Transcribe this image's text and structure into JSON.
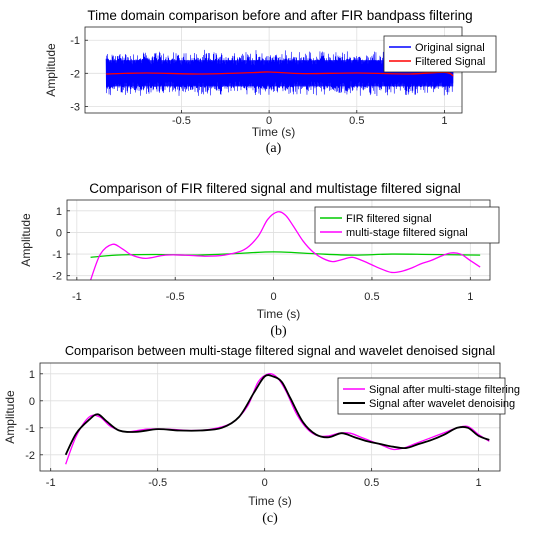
{
  "chart_data": [
    {
      "type": "line",
      "panel": "a",
      "title": "Time domain comparison before and after FIR bandpass filtering",
      "xlabel": "Time (s)",
      "ylabel": "Amplitude",
      "xlim": [
        -1.05,
        1.1
      ],
      "ylim": [
        -3.2,
        -0.6
      ],
      "xticks": [
        -0.5,
        0,
        0.5,
        1
      ],
      "xtick_labels": [
        "-0.5",
        "0",
        "0.5",
        "1"
      ],
      "yticks": [
        -3,
        -2,
        -1
      ],
      "ytick_labels": [
        "-3",
        "-2",
        "-1"
      ],
      "grid": true,
      "legend": "top-right",
      "series": [
        {
          "name": "Original signal",
          "color": "#0000ff",
          "style": "noise-band",
          "x_range": [
            -0.93,
            1.05
          ],
          "center": -2.0,
          "half_width": 0.72
        },
        {
          "name": "Filtered Signal",
          "color": "#ff0000",
          "x": [
            -0.93,
            -0.7,
            -0.4,
            -0.1,
            0.0,
            0.2,
            0.5,
            0.8,
            1.0,
            1.05
          ],
          "y": [
            -2.02,
            -1.99,
            -2.02,
            -1.98,
            -1.96,
            -2.01,
            -1.99,
            -2.02,
            -1.97,
            -2.08
          ]
        }
      ]
    },
    {
      "type": "line",
      "panel": "b",
      "title": "Comparison of FIR filtered signal and multistage filtered signal",
      "xlabel": "Time (s)",
      "ylabel": "Amplitude",
      "xlim": [
        -1.05,
        1.1
      ],
      "ylim": [
        -2.2,
        1.5
      ],
      "xticks": [
        -1,
        -0.5,
        0,
        0.5,
        1
      ],
      "xtick_labels": [
        "-1",
        "-0.5",
        "0",
        "0.5",
        "1"
      ],
      "yticks": [
        -2,
        -1,
        0,
        1
      ],
      "ytick_labels": [
        "-2",
        "-1",
        "0",
        "1"
      ],
      "grid": true,
      "legend": "top-right",
      "series": [
        {
          "name": "FIR filtered signal",
          "color": "#00cc00",
          "x": [
            -0.93,
            -0.8,
            -0.6,
            -0.4,
            -0.2,
            0.0,
            0.2,
            0.4,
            0.6,
            0.8,
            1.05
          ],
          "y": [
            -1.15,
            -1.05,
            -1.02,
            -1.05,
            -0.98,
            -0.9,
            -0.98,
            -1.05,
            -1.0,
            -1.02,
            -1.05
          ]
        },
        {
          "name": "multi-stage filtered signal",
          "color": "#ff00ff",
          "x": [
            -0.93,
            -0.88,
            -0.82,
            -0.77,
            -0.72,
            -0.65,
            -0.55,
            -0.45,
            -0.35,
            -0.25,
            -0.15,
            -0.08,
            -0.03,
            0.02,
            0.06,
            0.1,
            0.15,
            0.2,
            0.25,
            0.3,
            0.35,
            0.4,
            0.45,
            0.5,
            0.55,
            0.6,
            0.65,
            0.7,
            0.75,
            0.8,
            0.85,
            0.9,
            0.95,
            1.0,
            1.05
          ],
          "y": [
            -2.2,
            -1.0,
            -0.55,
            -0.75,
            -1.05,
            -1.2,
            -1.05,
            -1.05,
            -1.1,
            -1.05,
            -0.8,
            -0.2,
            0.6,
            0.95,
            0.8,
            0.3,
            -0.4,
            -0.9,
            -1.2,
            -1.35,
            -1.25,
            -1.15,
            -1.3,
            -1.5,
            -1.7,
            -1.85,
            -1.8,
            -1.65,
            -1.45,
            -1.3,
            -1.1,
            -0.95,
            -1.0,
            -1.3,
            -1.6
          ]
        }
      ]
    },
    {
      "type": "line",
      "panel": "c",
      "title": "Comparison between multi-stage filtered signal and wavelet denoised signal",
      "xlabel": "Time (s)",
      "ylabel": "Amplitude",
      "xlim": [
        -1.05,
        1.1
      ],
      "ylim": [
        -2.6,
        1.4
      ],
      "xticks": [
        -1,
        -0.5,
        0,
        0.5,
        1
      ],
      "xtick_labels": [
        "-1",
        "-0.5",
        "0",
        "0.5",
        "1"
      ],
      "yticks": [
        -2,
        -1,
        0,
        1
      ],
      "ytick_labels": [
        "-2",
        "-1",
        "0",
        "1"
      ],
      "grid": true,
      "legend": "top-right",
      "series": [
        {
          "name": "Signal after multi-stage filtering",
          "color": "#ff00ff",
          "x": [
            -0.93,
            -0.88,
            -0.82,
            -0.77,
            -0.72,
            -0.65,
            -0.55,
            -0.45,
            -0.35,
            -0.25,
            -0.15,
            -0.08,
            -0.03,
            0.02,
            0.06,
            0.1,
            0.15,
            0.2,
            0.25,
            0.3,
            0.35,
            0.4,
            0.45,
            0.5,
            0.55,
            0.6,
            0.65,
            0.7,
            0.75,
            0.8,
            0.85,
            0.9,
            0.95,
            1.0,
            1.05
          ],
          "y": [
            -2.35,
            -1.3,
            -0.6,
            -0.6,
            -0.95,
            -1.15,
            -1.05,
            -1.05,
            -1.1,
            -1.05,
            -0.8,
            -0.2,
            0.7,
            1.0,
            0.85,
            0.35,
            -0.5,
            -1.05,
            -1.3,
            -1.3,
            -1.2,
            -1.2,
            -1.35,
            -1.5,
            -1.65,
            -1.8,
            -1.75,
            -1.6,
            -1.45,
            -1.3,
            -1.15,
            -1.0,
            -0.95,
            -1.25,
            -1.5
          ]
        },
        {
          "name": "Signal after wavelet denoising",
          "color": "#000000",
          "x": [
            -0.93,
            -0.88,
            -0.82,
            -0.78,
            -0.74,
            -0.68,
            -0.6,
            -0.5,
            -0.4,
            -0.3,
            -0.2,
            -0.12,
            -0.05,
            0.0,
            0.04,
            0.08,
            0.12,
            0.18,
            0.24,
            0.3,
            0.36,
            0.42,
            0.48,
            0.54,
            0.6,
            0.66,
            0.72,
            0.78,
            0.84,
            0.9,
            0.95,
            1.0,
            1.05
          ],
          "y": [
            -2.0,
            -1.2,
            -0.7,
            -0.5,
            -0.75,
            -1.1,
            -1.15,
            -1.05,
            -1.1,
            -1.1,
            -1.0,
            -0.6,
            0.3,
            0.9,
            0.9,
            0.7,
            0.1,
            -0.8,
            -1.25,
            -1.35,
            -1.2,
            -1.35,
            -1.5,
            -1.6,
            -1.7,
            -1.75,
            -1.6,
            -1.45,
            -1.25,
            -1.0,
            -1.0,
            -1.3,
            -1.45
          ]
        }
      ]
    }
  ],
  "captions": {
    "a": "(a)",
    "b": "(b)",
    "c": "(c)"
  }
}
